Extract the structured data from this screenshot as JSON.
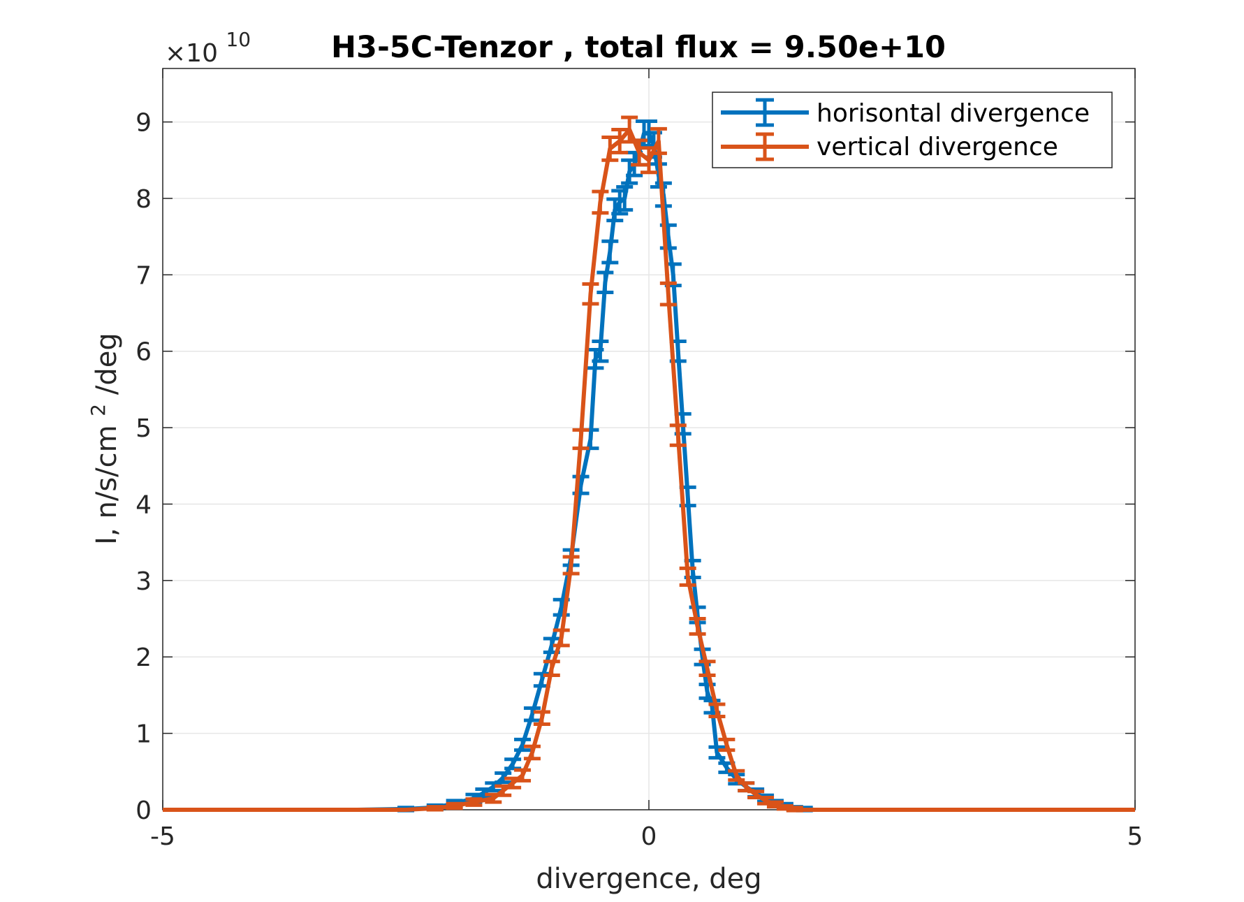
{
  "chart_data": {
    "type": "line",
    "title": "H3-5C-Tenzor , total flux =  9.50e+10",
    "xlabel": "divergence, deg",
    "ylabel": "I, n/s/cm²/deg",
    "ylabel_parts": {
      "pre": "I, n/s/cm",
      "sup": "2",
      "post": "/deg"
    },
    "xlim": [
      -5,
      5
    ],
    "ylim": [
      0,
      9.7
    ],
    "y_multiplier": {
      "base": "×10",
      "exponent": "10"
    },
    "xticks": [
      "-5",
      "0",
      "5"
    ],
    "xtick_values": [
      -5,
      0,
      5
    ],
    "yticks": [
      "0",
      "1",
      "2",
      "3",
      "4",
      "5",
      "6",
      "7",
      "8",
      "9"
    ],
    "ytick_values": [
      0,
      1,
      2,
      3,
      4,
      5,
      6,
      7,
      8,
      9
    ],
    "grid": true,
    "legend_position": "top-right",
    "series": [
      {
        "name": "horisontal divergence",
        "color": "#0072BD",
        "x": [
          -5.0,
          -4.5,
          -4.0,
          -3.5,
          -3.0,
          -2.5,
          -2.2,
          -2.0,
          -1.8,
          -1.7,
          -1.6,
          -1.5,
          -1.4,
          -1.3,
          -1.2,
          -1.1,
          -1.0,
          -0.9,
          -0.8,
          -0.7,
          -0.6,
          -0.55,
          -0.5,
          -0.45,
          -0.4,
          -0.35,
          -0.3,
          -0.25,
          -0.2,
          -0.15,
          -0.1,
          -0.05,
          0.0,
          0.05,
          0.1,
          0.15,
          0.2,
          0.25,
          0.3,
          0.35,
          0.4,
          0.45,
          0.5,
          0.55,
          0.6,
          0.65,
          0.7,
          0.8,
          0.9,
          1.0,
          1.1,
          1.2,
          1.3,
          1.4,
          1.5,
          1.6,
          1.7,
          1.8,
          2.0,
          2.2,
          2.5,
          3.0,
          3.5,
          4.0,
          4.5,
          5.0
        ],
        "y": [
          0,
          0,
          0,
          0,
          0,
          0.01,
          0.03,
          0.08,
          0.15,
          0.22,
          0.3,
          0.42,
          0.6,
          0.85,
          1.25,
          1.7,
          2.15,
          2.65,
          3.3,
          4.25,
          4.85,
          5.9,
          6.0,
          6.9,
          7.3,
          7.85,
          7.95,
          8.0,
          8.35,
          8.45,
          8.6,
          8.85,
          8.85,
          8.7,
          8.3,
          8.05,
          7.5,
          7.0,
          6.0,
          5.05,
          4.1,
          3.15,
          2.55,
          2.0,
          1.55,
          1.35,
          0.75,
          0.55,
          0.4,
          0.3,
          0.22,
          0.15,
          0.08,
          0.05,
          0.02,
          0.01,
          0,
          0,
          0,
          0,
          0,
          0,
          0,
          0,
          0,
          0
        ],
        "err": [
          0,
          0,
          0,
          0,
          0,
          0.02,
          0.03,
          0.04,
          0.05,
          0.05,
          0.05,
          0.06,
          0.06,
          0.07,
          0.08,
          0.08,
          0.09,
          0.1,
          0.1,
          0.11,
          0.12,
          0.12,
          0.13,
          0.13,
          0.14,
          0.14,
          0.15,
          0.15,
          0.15,
          0.15,
          0.16,
          0.16,
          0.16,
          0.16,
          0.15,
          0.15,
          0.15,
          0.14,
          0.13,
          0.13,
          0.12,
          0.11,
          0.1,
          0.1,
          0.09,
          0.08,
          0.07,
          0.06,
          0.06,
          0.05,
          0.05,
          0.04,
          0.04,
          0.03,
          0.02,
          0.02,
          0,
          0,
          0,
          0,
          0,
          0,
          0,
          0,
          0,
          0
        ]
      },
      {
        "name": "vertical divergence",
        "color": "#D95319",
        "x": [
          -5.0,
          -4.5,
          -4.0,
          -3.5,
          -3.0,
          -2.5,
          -2.2,
          -2.0,
          -1.8,
          -1.6,
          -1.5,
          -1.4,
          -1.3,
          -1.2,
          -1.1,
          -1.0,
          -0.9,
          -0.8,
          -0.7,
          -0.6,
          -0.5,
          -0.4,
          -0.3,
          -0.2,
          -0.1,
          0.0,
          0.1,
          0.2,
          0.3,
          0.4,
          0.5,
          0.6,
          0.7,
          0.8,
          0.9,
          1.0,
          1.1,
          1.2,
          1.3,
          1.4,
          1.5,
          1.6,
          1.8,
          2.0,
          2.2,
          2.5,
          3.0,
          3.5,
          4.0,
          4.5,
          5.0
        ],
        "y": [
          0,
          0,
          0,
          0,
          0,
          0,
          0.02,
          0.05,
          0.1,
          0.15,
          0.25,
          0.35,
          0.45,
          0.75,
          1.2,
          1.85,
          2.25,
          3.2,
          4.85,
          6.75,
          7.95,
          8.65,
          8.75,
          8.9,
          8.6,
          8.5,
          8.75,
          6.75,
          4.9,
          3.05,
          2.4,
          1.85,
          1.3,
          0.85,
          0.45,
          0.3,
          0.2,
          0.12,
          0.07,
          0.03,
          0.01,
          0,
          0,
          0,
          0,
          0,
          0,
          0,
          0,
          0,
          0
        ],
        "err": [
          0,
          0,
          0,
          0,
          0,
          0,
          0.02,
          0.03,
          0.04,
          0.05,
          0.06,
          0.06,
          0.07,
          0.08,
          0.08,
          0.09,
          0.1,
          0.11,
          0.12,
          0.13,
          0.14,
          0.15,
          0.15,
          0.16,
          0.16,
          0.16,
          0.16,
          0.14,
          0.13,
          0.11,
          0.1,
          0.09,
          0.08,
          0.07,
          0.06,
          0.05,
          0.04,
          0.04,
          0.03,
          0.02,
          0.02,
          0,
          0,
          0,
          0,
          0,
          0,
          0,
          0,
          0,
          0
        ]
      }
    ]
  }
}
